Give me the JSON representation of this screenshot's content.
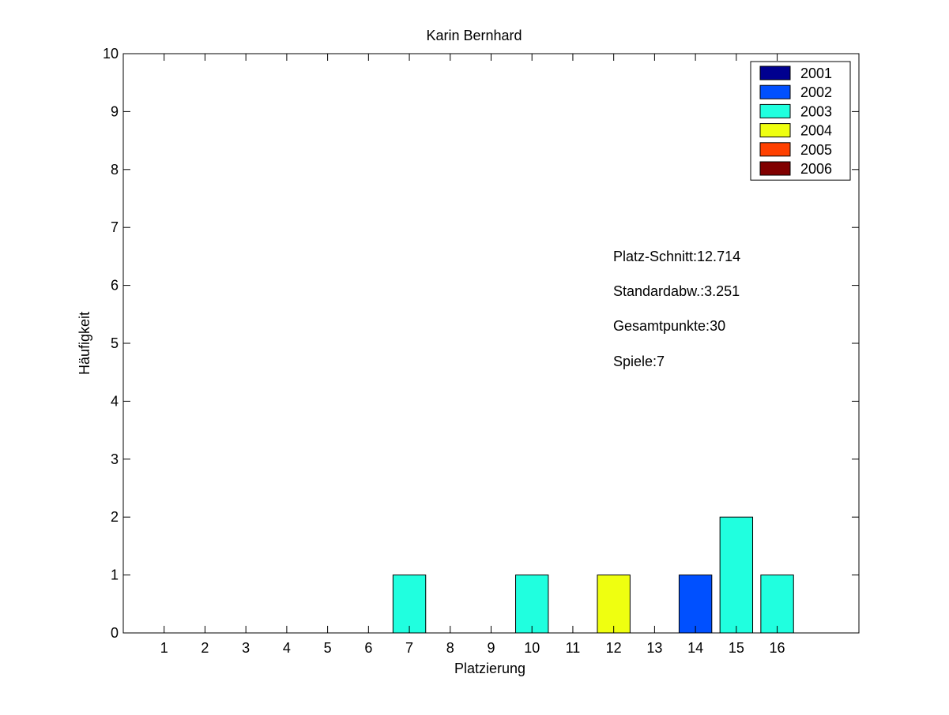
{
  "chart_data": {
    "type": "bar",
    "title": "Karin Bernhard",
    "xlabel": "Platzierung",
    "ylabel": "Häufigkeit",
    "x_ticks": [
      "1",
      "2",
      "3",
      "4",
      "5",
      "6",
      "7",
      "8",
      "9",
      "10",
      "11",
      "12",
      "13",
      "14",
      "15",
      "16"
    ],
    "xlim": [
      0,
      18
    ],
    "ylim": [
      0,
      10
    ],
    "y_ticks": [
      0,
      1,
      2,
      3,
      4,
      5,
      6,
      7,
      8,
      9,
      10
    ],
    "grid": false,
    "legend_position": "top-right",
    "series": [
      {
        "name": "2001",
        "color": "#00008f",
        "values": [
          0,
          0,
          0,
          0,
          0,
          0,
          0,
          0,
          0,
          0,
          0,
          0,
          0,
          0,
          0,
          0
        ]
      },
      {
        "name": "2002",
        "color": "#0050ff",
        "values": [
          0,
          0,
          0,
          0,
          0,
          0,
          0,
          0,
          0,
          0,
          0,
          0,
          0,
          1,
          0,
          0
        ]
      },
      {
        "name": "2003",
        "color": "#20ffdf",
        "values": [
          0,
          0,
          0,
          0,
          0,
          0,
          1,
          0,
          0,
          1,
          0,
          0,
          0,
          0,
          2,
          1
        ]
      },
      {
        "name": "2004",
        "color": "#efff10",
        "values": [
          0,
          0,
          0,
          0,
          0,
          0,
          0,
          0,
          0,
          0,
          0,
          1,
          0,
          0,
          0,
          0
        ]
      },
      {
        "name": "2005",
        "color": "#ff4000",
        "values": [
          0,
          0,
          0,
          0,
          0,
          0,
          0,
          0,
          0,
          0,
          0,
          0,
          0,
          0,
          0,
          0
        ]
      },
      {
        "name": "2006",
        "color": "#800000",
        "values": [
          0,
          0,
          0,
          0,
          0,
          0,
          0,
          0,
          0,
          0,
          0,
          0,
          0,
          0,
          0,
          0
        ]
      }
    ],
    "annotations": [
      "Platz-Schnitt:12.714",
      "Standardabw.:3.251",
      "Gesamtpunkte:30",
      "Spiele:7"
    ]
  }
}
